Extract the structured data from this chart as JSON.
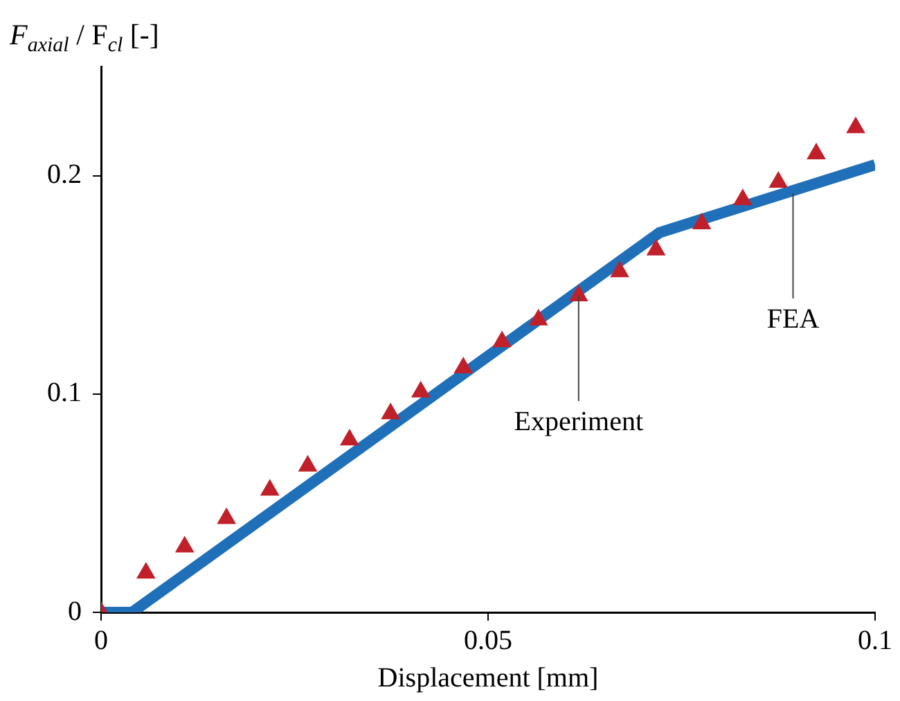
{
  "chart_data": {
    "type": "line",
    "xlabel": "Displacement [mm]",
    "ylabel": "F$_{axial}$ / F$_{cl}$ [-]",
    "xlim": [
      0,
      0.1
    ],
    "xticks": [
      0,
      0.05,
      0.1
    ],
    "ylim": [
      0,
      0.25
    ],
    "yticks": [
      0,
      0.1,
      0.2
    ],
    "grid": false,
    "legend": false,
    "series": [
      {
        "type": "scatter",
        "marker": "triangle",
        "color": "#c0202a",
        "x": [
          0,
          0.0058,
          0.0108,
          0.0162,
          0.0218,
          0.0267,
          0.0321,
          0.0374,
          0.0413,
          0.0468,
          0.0518,
          0.0565,
          0.0617,
          0.067,
          0.0717,
          0.0776,
          0.0829,
          0.0875,
          0.0924,
          0.0975
        ],
        "values": [
          0,
          0.018,
          0.03,
          0.043,
          0.056,
          0.067,
          0.079,
          0.091,
          0.101,
          0.112,
          0.124,
          0.134,
          0.145,
          0.156,
          0.166,
          0.178,
          0.189,
          0.197,
          0.21,
          0.222
        ]
      },
      {
        "type": "line",
        "marker": "none",
        "line_style": "solid",
        "color": "#1f70b8",
        "x": [
          0,
          0.004,
          0.0722,
          0.1
        ],
        "values": [
          0,
          0,
          0.174,
          0.205
        ]
      }
    ],
    "annotations": [
      {
        "text": "Experiment",
        "x": 0.0617,
        "y": 0.145
      },
      {
        "text": "FEA",
        "x": 0.0894,
        "y": 0.192
      }
    ]
  }
}
